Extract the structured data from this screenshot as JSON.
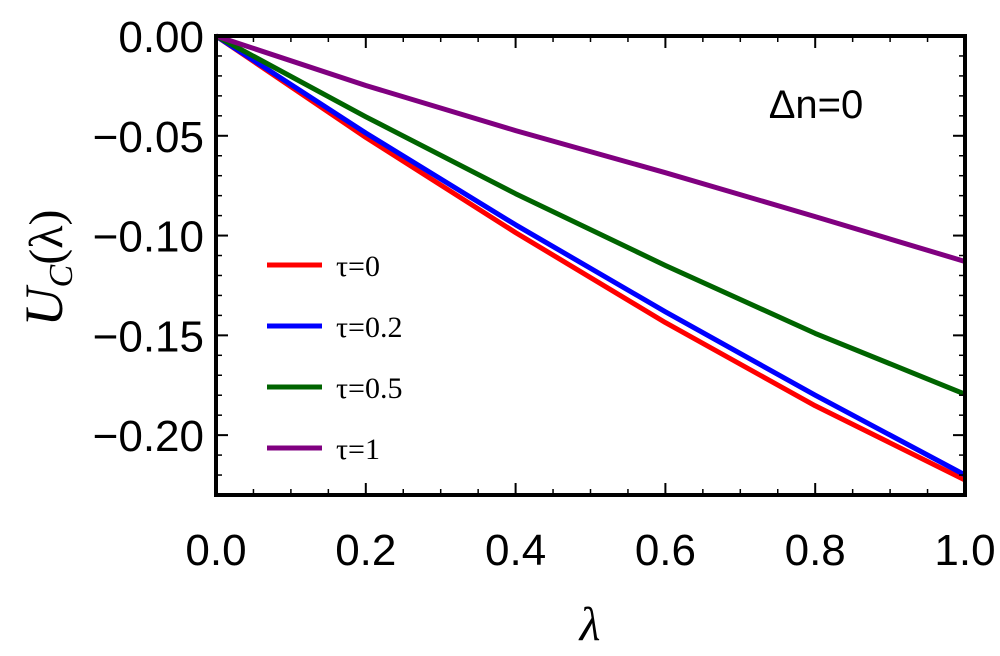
{
  "chart_data": {
    "type": "line",
    "title": "",
    "xlabel": "λ",
    "ylabel": "U_C(λ)",
    "ylabel_main": "U",
    "ylabel_sub": "C",
    "ylabel_arg": "(λ)",
    "xlim": [
      0,
      1
    ],
    "ylim": [
      -0.23,
      0
    ],
    "xticks": [
      0.0,
      0.2,
      0.4,
      0.6,
      0.8,
      1.0
    ],
    "xtick_labels": [
      "0.0",
      "0.2",
      "0.4",
      "0.6",
      "0.8",
      "1.0"
    ],
    "yticks": [
      0.0,
      -0.05,
      -0.1,
      -0.15,
      -0.2
    ],
    "ytick_labels": [
      "0.00",
      "−0.05",
      "−0.10",
      "−0.15",
      "−0.20"
    ],
    "annotation": "Δn=0",
    "legend_position": "left",
    "grid": false,
    "x": [
      0,
      0.2,
      0.4,
      0.6,
      0.8,
      1.0
    ],
    "series": [
      {
        "name": "τ=0",
        "color": "#ff0000",
        "values": [
          0,
          -0.0508,
          -0.0985,
          -0.1436,
          -0.1853,
          -0.2225
        ]
      },
      {
        "name": "τ=0.2",
        "color": "#0000ff",
        "values": [
          0,
          -0.0486,
          -0.0946,
          -0.1382,
          -0.18,
          -0.22
        ]
      },
      {
        "name": "τ=0.5",
        "color": "#006400",
        "values": [
          0,
          -0.0405,
          -0.079,
          -0.115,
          -0.149,
          -0.1795
        ]
      },
      {
        "name": "τ=1",
        "color": "#800080",
        "values": [
          0,
          -0.0248,
          -0.0474,
          -0.0685,
          -0.0905,
          -0.113
        ]
      }
    ]
  }
}
